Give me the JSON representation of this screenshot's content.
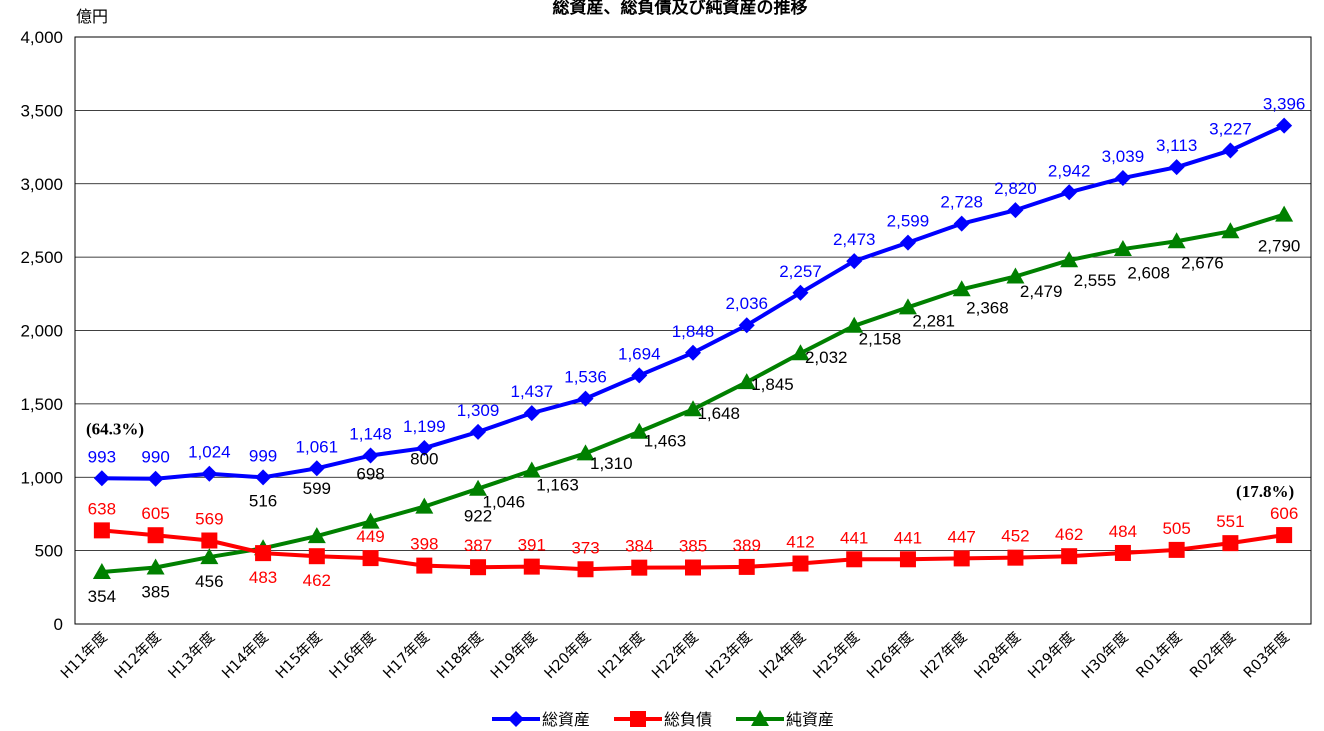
{
  "chart_data": {
    "type": "line",
    "title": "総資産、総負債及び純資産の推移",
    "ylabel": "億円",
    "xlabel": "",
    "ylim": [
      0,
      4000
    ],
    "yticks": [
      0,
      500,
      1000,
      1500,
      2000,
      2500,
      3000,
      3500,
      4000
    ],
    "ytick_labels": [
      "0",
      "500",
      "1,000",
      "1,500",
      "2,000",
      "2,500",
      "3,000",
      "3,500",
      "4,000"
    ],
    "grid": true,
    "legend_position": "bottom",
    "categories": [
      "H11年度",
      "H12年度",
      "H13年度",
      "H14年度",
      "H15年度",
      "H16年度",
      "H17年度",
      "H18年度",
      "H19年度",
      "H20年度",
      "H21年度",
      "H22年度",
      "H23年度",
      "H24年度",
      "H25年度",
      "H26年度",
      "H27年度",
      "H28年度",
      "H29年度",
      "H30年度",
      "R01年度",
      "R02年度",
      "R03年度"
    ],
    "series": [
      {
        "name": "総資産",
        "color": "#0000FF",
        "marker": "diamond",
        "values": [
          993,
          990,
          1024,
          999,
          1061,
          1148,
          1199,
          1309,
          1437,
          1536,
          1694,
          1848,
          2036,
          2257,
          2473,
          2599,
          2728,
          2820,
          2942,
          3039,
          3113,
          3227,
          3396
        ],
        "labels": [
          "993",
          "990",
          "1,024",
          "999",
          "1,061",
          "1,148",
          "1,199",
          "1,309",
          "1,437",
          "1,536",
          "1,694",
          "1,848",
          "2,036",
          "2,257",
          "2,473",
          "2,599",
          "2,728",
          "2,820",
          "2,942",
          "3,039",
          "3,113",
          "3,227",
          "3,396"
        ]
      },
      {
        "name": "総負債",
        "color": "#FF0000",
        "marker": "square",
        "values": [
          638,
          605,
          569,
          483,
          462,
          449,
          398,
          387,
          391,
          373,
          384,
          385,
          389,
          412,
          441,
          441,
          447,
          452,
          462,
          484,
          505,
          551,
          606
        ],
        "labels": [
          "638",
          "605",
          "569",
          "483",
          "462",
          "449",
          "398",
          "387",
          "391",
          "373",
          "384",
          "385",
          "389",
          "412",
          "441",
          "441",
          "447",
          "452",
          "462",
          "484",
          "505",
          "551",
          "606"
        ]
      },
      {
        "name": "純資産",
        "color": "#008000",
        "marker": "triangle",
        "values": [
          354,
          385,
          456,
          516,
          599,
          698,
          800,
          922,
          1046,
          1163,
          1310,
          1463,
          1648,
          1845,
          2032,
          2158,
          2281,
          2368,
          2479,
          2555,
          2608,
          2676,
          2790
        ],
        "labels": [
          "354",
          "385",
          "456",
          "516",
          "599",
          "698",
          "800",
          "922",
          "1,046",
          "1,163",
          "1,310",
          "1,463",
          "1,648",
          "1,845",
          "2,032",
          "2,158",
          "2,281",
          "2,368",
          "2,479",
          "2,555",
          "2,608",
          "2,676",
          "2,790"
        ]
      }
    ],
    "annotations": [
      {
        "text": "(64.3%)",
        "category": "H11年度"
      },
      {
        "text": "(17.8%)",
        "category": "R03年度"
      }
    ]
  }
}
